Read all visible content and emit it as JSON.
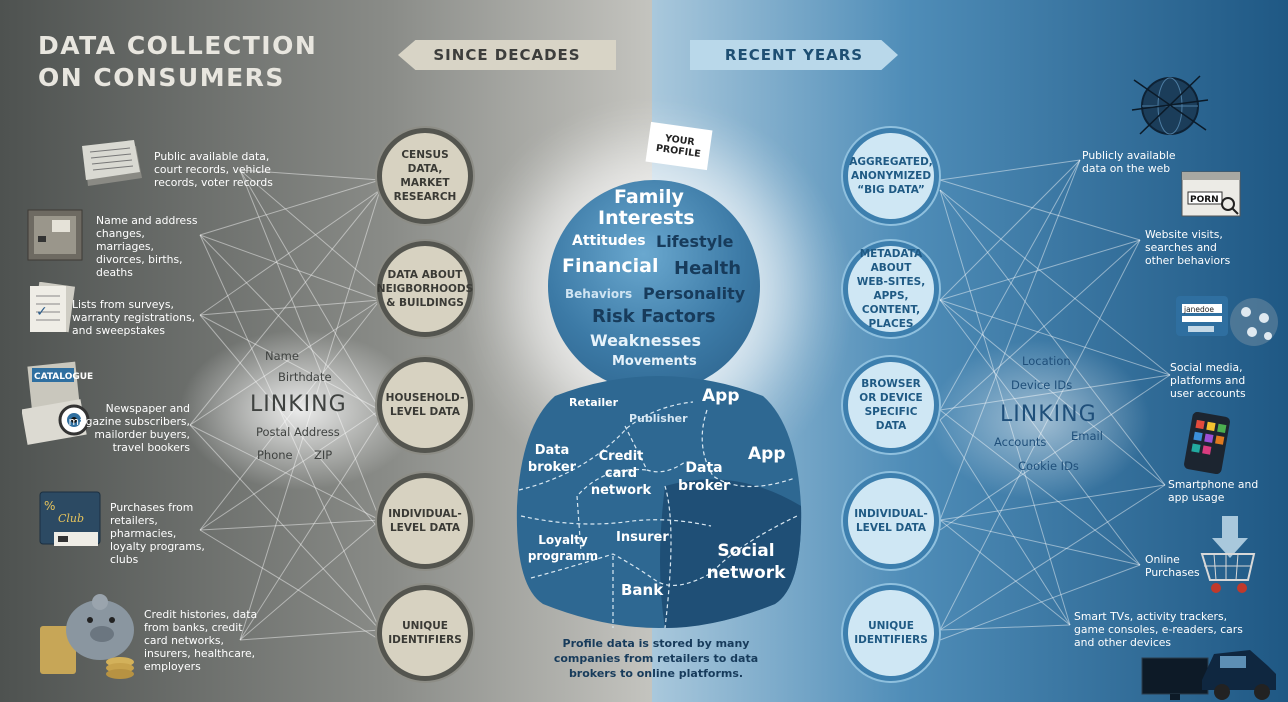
{
  "title": "DATA COLLECTION ON CONSUMERS",
  "banner_left": "SINCE DECADES",
  "banner_right": "RECENT YEARS",
  "left_nodes": [
    "CENSUS DATA, MARKET RESEARCH",
    "DATA ABOUT NEIGBORHOODS & BUILDINGS",
    "HOUSEHOLD-LEVEL DATA",
    "INDIVIDUAL-LEVEL DATA",
    "UNIQUE IDENTIFIERS"
  ],
  "right_nodes": [
    "AGGREGATED, ANONYMIZED “BIG DATA”",
    "METADATA ABOUT WEB-SITES, APPS, CONTENT, PLACES",
    "BROWSER OR DEVICE SPECIFIC DATA",
    "INDIVIDUAL-LEVEL DATA",
    "UNIQUE IDENTIFIERS"
  ],
  "left_sources": [
    {
      "text": "Public available data, court records, vehicle records, voter records",
      "icon": "newspaper-stack-icon"
    },
    {
      "text": "Name and address changes, marriages, divorces, births, deaths",
      "icon": "mailbox-icon"
    },
    {
      "text": "Lists from surveys, warranty registrations, and sweepstakes",
      "icon": "survey-forms-icon"
    },
    {
      "text": "Newspaper and magazine subscribers, mailorder buyers, travel bookers",
      "icon": "catalogue-eye-icon"
    },
    {
      "text": "Purchases from retailers, pharmacies, loyalty programs, clubs",
      "icon": "club-card-icon"
    },
    {
      "text": "Credit histories, data from banks, credit card networks, insurers, healthcare, employers",
      "icon": "piggy-bank-icon"
    }
  ],
  "right_sources": [
    {
      "text": "Publicly available data on the web",
      "icon": "globe-network-icon"
    },
    {
      "text": "Website visits, searches and other behaviors",
      "icon": "browser-window-icon"
    },
    {
      "text": "Social media, platforms and user accounts",
      "icon": "login-network-icon"
    },
    {
      "text": "Smartphone and app usage",
      "icon": "smartphone-icon"
    },
    {
      "text": "Online Purchases",
      "icon": "shopping-cart-icon"
    },
    {
      "text": "Smart TVs, activity trackers, game consoles, e-readers, cars and other devices",
      "icon": "tv-car-icon"
    }
  ],
  "left_linking": {
    "title": "LINKING",
    "words": [
      "Name",
      "Birthdate",
      "Postal Address",
      "Phone",
      "ZIP"
    ]
  },
  "right_linking": {
    "title": "LINKING",
    "words": [
      "Location",
      "Device IDs",
      "Accounts",
      "Email",
      "Cookie IDs"
    ]
  },
  "profile_flag": "YOUR PROFILE",
  "profile_traits": [
    "Family",
    "Interests",
    "Attitudes",
    "Lifestyle",
    "Financial",
    "Health",
    "Behaviors",
    "Personality",
    "Risk Factors",
    "Weaknesses",
    "Movements"
  ],
  "body_segments": [
    "Retailer",
    "Publisher",
    "App",
    "Data broker",
    "Credit card network",
    "Data broker",
    "App",
    "Loyalty programm",
    "Insurer",
    "Social network",
    "Bank"
  ],
  "caption": "Profile data is stored by many companies from retailers to data brokers to online platforms.",
  "colors": {
    "left_bg": "#5e625f",
    "right_bg": "#2b6b99",
    "left_node": "#d7d2c1",
    "right_node": "#cfe7f4",
    "profile_blue": "#3c7aa6"
  }
}
